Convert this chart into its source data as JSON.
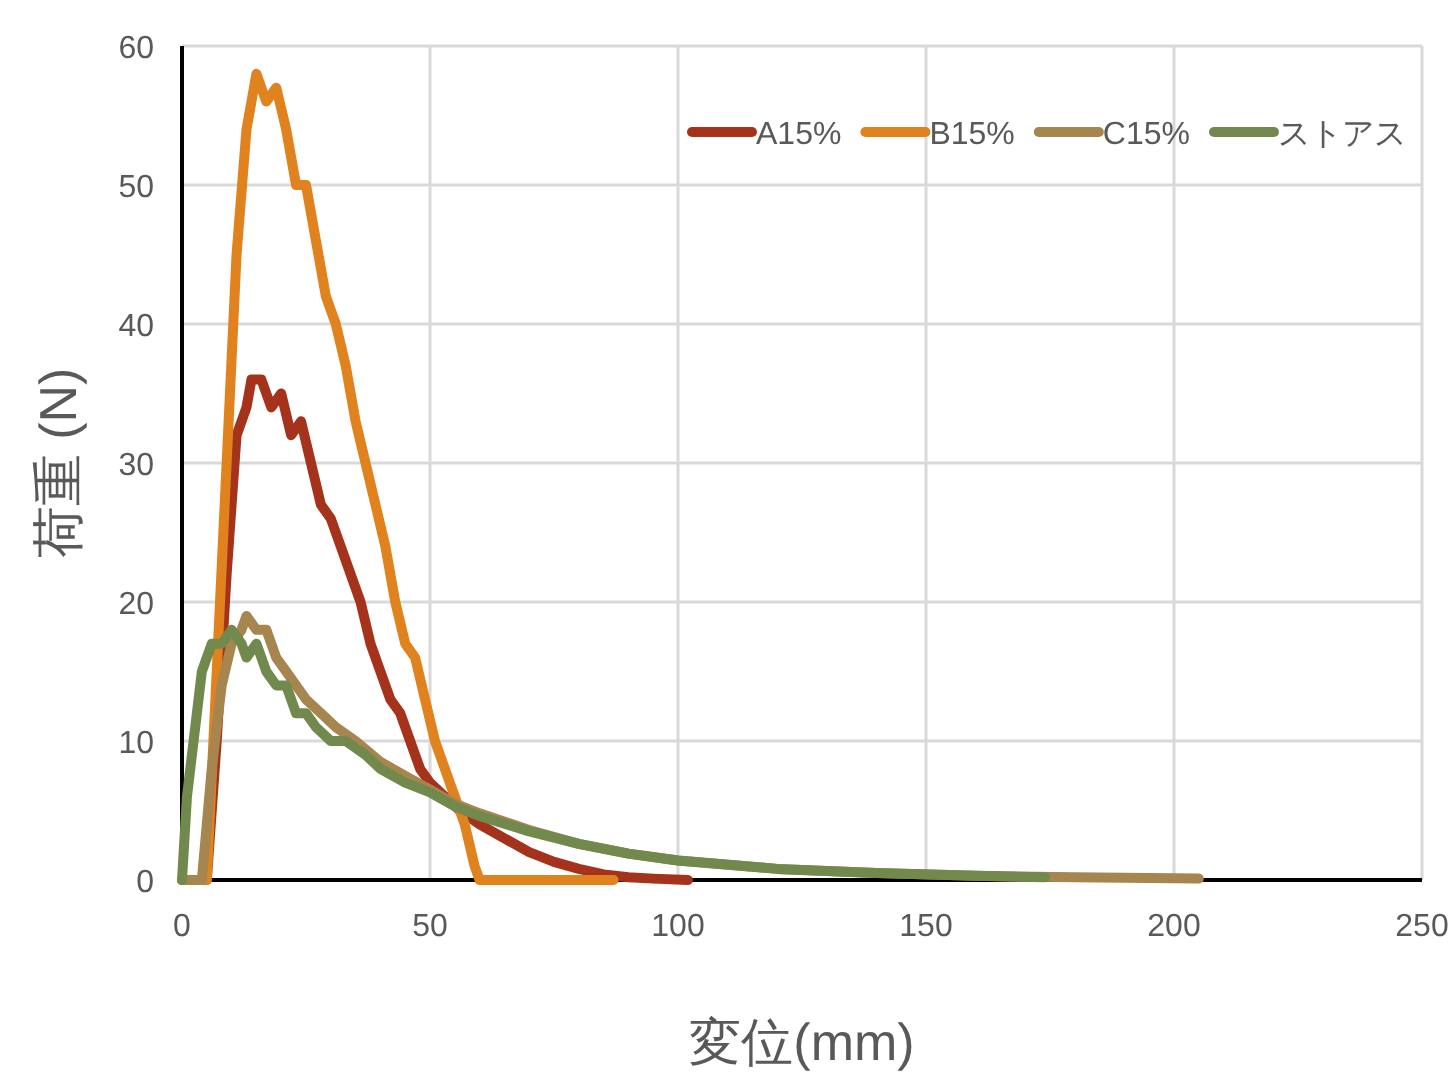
{
  "chart_data": {
    "type": "line",
    "xlabel": "変位(mm)",
    "ylabel": "荷重 (N)",
    "xlim": [
      0,
      250
    ],
    "xticks": [
      0,
      50,
      100,
      150,
      200,
      250
    ],
    "ylim": [
      0,
      60
    ],
    "yticks": [
      0,
      10,
      20,
      30,
      40,
      50,
      60
    ],
    "grid": true,
    "legend": "top right",
    "marker": "none",
    "line_style": "solid",
    "series": [
      {
        "name": "A15%",
        "color": "#a5321a",
        "x": [
          0,
          5,
          7,
          9,
          11,
          13,
          14,
          16,
          18,
          20,
          22,
          24,
          26,
          28,
          30,
          32,
          34,
          36,
          38,
          40,
          42,
          44,
          46,
          48,
          50,
          53,
          56,
          60,
          65,
          70,
          75,
          80,
          85,
          90,
          95,
          102
        ],
        "values": [
          0,
          0,
          10,
          22,
          32,
          34,
          36,
          36,
          34,
          35,
          32,
          33,
          30,
          27,
          26,
          24,
          22,
          20,
          17,
          15,
          13,
          12,
          10,
          8,
          7,
          6,
          5,
          4,
          3,
          2,
          1.3,
          0.8,
          0.4,
          0.2,
          0.1,
          0
        ]
      },
      {
        "name": "B15%",
        "color": "#e0821e",
        "x": [
          0,
          5,
          7,
          9,
          11,
          13,
          15,
          17,
          19,
          21,
          23,
          25,
          27,
          29,
          31,
          33,
          35,
          37,
          39,
          41,
          43,
          45,
          47,
          49,
          51,
          54,
          57,
          59,
          60,
          87
        ],
        "values": [
          0,
          0,
          15,
          30,
          45,
          54,
          58,
          56,
          57,
          54,
          50,
          50,
          46,
          42,
          40,
          37,
          33,
          30,
          27,
          24,
          20,
          17,
          16,
          13,
          10,
          7,
          4,
          1,
          0,
          0
        ]
      },
      {
        "name": "C15%",
        "color": "#a6854e",
        "x": [
          0,
          4,
          6,
          8,
          10,
          12,
          13,
          15,
          17,
          19,
          21,
          23,
          25,
          28,
          31,
          35,
          40,
          45,
          50,
          55,
          60,
          70,
          80,
          90,
          100,
          120,
          140,
          160,
          180,
          205
        ],
        "values": [
          0,
          0,
          8,
          14,
          17,
          18,
          19,
          18,
          18,
          16,
          15,
          14,
          13,
          12,
          11,
          10,
          8.5,
          7.5,
          6.5,
          5.5,
          4.8,
          3.6,
          2.6,
          1.9,
          1.4,
          0.8,
          0.5,
          0.3,
          0.2,
          0.1
        ]
      },
      {
        "name": "ストアス",
        "color": "#72894e",
        "x": [
          0,
          1,
          2,
          4,
          6,
          8,
          10,
          12,
          13,
          15,
          17,
          19,
          21,
          23,
          25,
          27,
          30,
          33,
          37,
          40,
          45,
          50,
          55,
          60,
          70,
          80,
          90,
          100,
          120,
          140,
          160,
          174
        ],
        "values": [
          0,
          6,
          9,
          15,
          17,
          17,
          18,
          17,
          16,
          17,
          15,
          14,
          14,
          12,
          12,
          11,
          10,
          10,
          9,
          8,
          7,
          6.3,
          5.3,
          4.6,
          3.5,
          2.6,
          1.9,
          1.4,
          0.8,
          0.5,
          0.3,
          0.2
        ]
      }
    ]
  }
}
